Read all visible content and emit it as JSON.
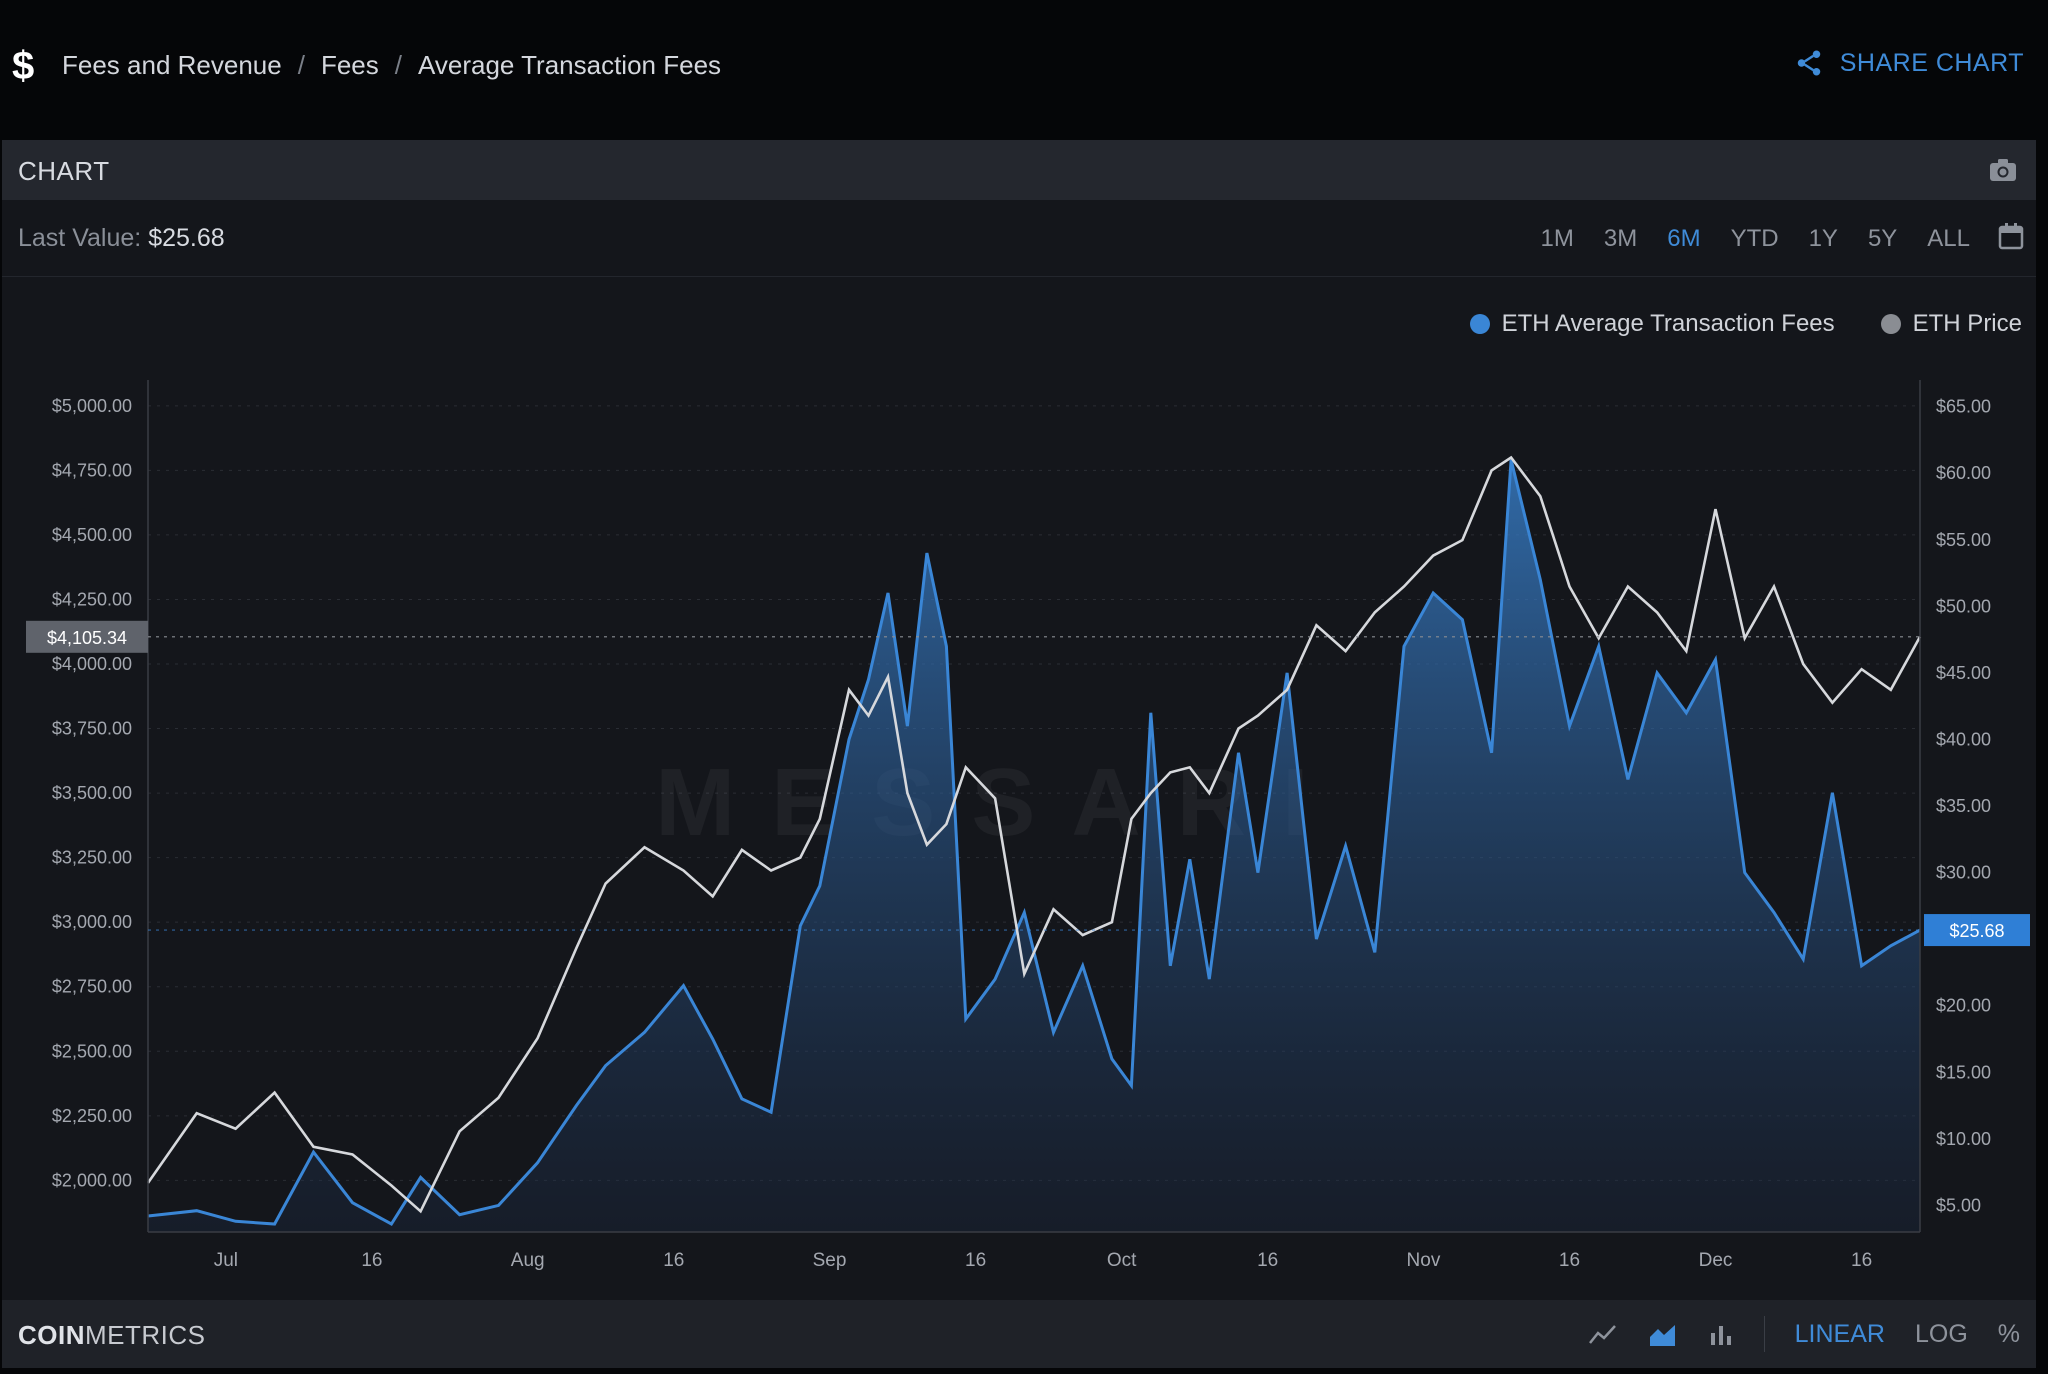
{
  "header": {
    "currency_icon": "dollar-icon",
    "breadcrumbs": [
      "Fees and Revenue",
      "Fees",
      "Average Transaction Fees"
    ],
    "breadcrumb_separator": "/",
    "share_label": "SHARE CHART"
  },
  "panel": {
    "title": "CHART",
    "last_value_label": "Last Value:",
    "last_value": "$25.68",
    "ranges": [
      "1M",
      "3M",
      "6M",
      "YTD",
      "1Y",
      "5Y",
      "ALL"
    ],
    "active_range": "6M"
  },
  "footer": {
    "brand_bold": "COIN",
    "brand_rest": "METRICS",
    "scales": [
      "LINEAR",
      "LOG",
      "%"
    ],
    "active_scale": "LINEAR"
  },
  "colors": {
    "fees_line": "#3a86d6",
    "price_line": "#d6d8dc",
    "accent": "#3f8bd8"
  },
  "chart_data": {
    "type": "line",
    "watermark": "MESSARI",
    "x_range": [
      "2021-06-23",
      "2021-12-22"
    ],
    "x_tick_labels": [
      {
        "date": "2021-07-01",
        "label": "Jul"
      },
      {
        "date": "2021-07-16",
        "label": "16"
      },
      {
        "date": "2021-08-01",
        "label": "Aug"
      },
      {
        "date": "2021-08-16",
        "label": "16"
      },
      {
        "date": "2021-09-01",
        "label": "Sep"
      },
      {
        "date": "2021-09-16",
        "label": "16"
      },
      {
        "date": "2021-10-01",
        "label": "Oct"
      },
      {
        "date": "2021-10-16",
        "label": "16"
      },
      {
        "date": "2021-11-01",
        "label": "Nov"
      },
      {
        "date": "2021-11-16",
        "label": "16"
      },
      {
        "date": "2021-12-01",
        "label": "Dec"
      },
      {
        "date": "2021-12-16",
        "label": "16"
      }
    ],
    "y_left": {
      "range": [
        1800,
        5100
      ],
      "ticks": [
        2000,
        2250,
        2500,
        2750,
        3000,
        3250,
        3500,
        3750,
        4000,
        4250,
        4500,
        4750,
        5000
      ],
      "tick_labels": [
        "$2,000.00",
        "$2,250.00",
        "$2,500.00",
        "$2,750.00",
        "$3,000.00",
        "$3,250.00",
        "$3,500.00",
        "$3,750.00",
        "$4,000.00",
        "$4,250.00",
        "$4,500.00",
        "$4,750.00",
        "$5,000.00"
      ],
      "crosshair_value": 4105.34,
      "crosshair_label": "$4,105.34"
    },
    "y_right": {
      "range": [
        3,
        67
      ],
      "ticks": [
        5,
        10,
        15,
        20,
        25,
        30,
        35,
        40,
        45,
        50,
        55,
        60,
        65
      ],
      "tick_labels": [
        "$5.00",
        "$10.00",
        "$15.00",
        "$20.00",
        "$25.00",
        "$30.00",
        "$35.00",
        "$40.00",
        "$45.00",
        "$50.00",
        "$55.00",
        "$60.00",
        "$65.00"
      ],
      "last_value": 25.68,
      "last_label": "$25.68"
    },
    "legend_placement": "top-right",
    "series": [
      {
        "name": "ETH Average Transaction Fees",
        "axis": "right",
        "style": "area",
        "points": [
          [
            "2021-06-23",
            4.2
          ],
          [
            "2021-06-28",
            4.6
          ],
          [
            "2021-07-02",
            3.8
          ],
          [
            "2021-07-06",
            3.6
          ],
          [
            "2021-07-10",
            9.0
          ],
          [
            "2021-07-14",
            5.2
          ],
          [
            "2021-07-18",
            3.6
          ],
          [
            "2021-07-21",
            7.1
          ],
          [
            "2021-07-25",
            4.3
          ],
          [
            "2021-07-29",
            5.0
          ],
          [
            "2021-08-02",
            8.2
          ],
          [
            "2021-08-06",
            12.5
          ],
          [
            "2021-08-09",
            15.5
          ],
          [
            "2021-08-13",
            18.0
          ],
          [
            "2021-08-17",
            21.5
          ],
          [
            "2021-08-20",
            17.5
          ],
          [
            "2021-08-23",
            13.0
          ],
          [
            "2021-08-26",
            12.0
          ],
          [
            "2021-08-29",
            26.0
          ],
          [
            "2021-08-31",
            29.0
          ],
          [
            "2021-09-03",
            40.0
          ],
          [
            "2021-09-05",
            44.5
          ],
          [
            "2021-09-07",
            51.0
          ],
          [
            "2021-09-09",
            41.0
          ],
          [
            "2021-09-11",
            54.0
          ],
          [
            "2021-09-13",
            47.0
          ],
          [
            "2021-09-15",
            19.0
          ],
          [
            "2021-09-18",
            22.0
          ],
          [
            "2021-09-21",
            27.0
          ],
          [
            "2021-09-24",
            18.0
          ],
          [
            "2021-09-27",
            23.0
          ],
          [
            "2021-09-30",
            16.0
          ],
          [
            "2021-10-02",
            14.0
          ],
          [
            "2021-10-04",
            42.0
          ],
          [
            "2021-10-06",
            23.0
          ],
          [
            "2021-10-08",
            31.0
          ],
          [
            "2021-10-10",
            22.0
          ],
          [
            "2021-10-13",
            39.0
          ],
          [
            "2021-10-15",
            30.0
          ],
          [
            "2021-10-18",
            45.0
          ],
          [
            "2021-10-21",
            25.0
          ],
          [
            "2021-10-24",
            32.0
          ],
          [
            "2021-10-27",
            24.0
          ],
          [
            "2021-10-30",
            47.0
          ],
          [
            "2021-11-02",
            51.0
          ],
          [
            "2021-11-05",
            49.0
          ],
          [
            "2021-11-08",
            39.0
          ],
          [
            "2021-11-10",
            61.0
          ],
          [
            "2021-11-13",
            52.0
          ],
          [
            "2021-11-16",
            41.0
          ],
          [
            "2021-11-19",
            47.0
          ],
          [
            "2021-11-22",
            37.0
          ],
          [
            "2021-11-25",
            45.0
          ],
          [
            "2021-11-28",
            42.0
          ],
          [
            "2021-12-01",
            46.0
          ],
          [
            "2021-12-04",
            30.0
          ],
          [
            "2021-12-07",
            27.0
          ],
          [
            "2021-12-10",
            23.5
          ],
          [
            "2021-12-13",
            36.0
          ],
          [
            "2021-12-16",
            23.0
          ],
          [
            "2021-12-19",
            24.5
          ],
          [
            "2021-12-22",
            25.68
          ]
        ]
      },
      {
        "name": "ETH Price",
        "axis": "left",
        "style": "line",
        "points": [
          [
            "2021-06-23",
            1990
          ],
          [
            "2021-06-28",
            2260
          ],
          [
            "2021-07-02",
            2200
          ],
          [
            "2021-07-06",
            2340
          ],
          [
            "2021-07-10",
            2130
          ],
          [
            "2021-07-14",
            2100
          ],
          [
            "2021-07-18",
            1980
          ],
          [
            "2021-07-21",
            1880
          ],
          [
            "2021-07-25",
            2190
          ],
          [
            "2021-07-29",
            2320
          ],
          [
            "2021-08-02",
            2550
          ],
          [
            "2021-08-06",
            2900
          ],
          [
            "2021-08-09",
            3150
          ],
          [
            "2021-08-13",
            3290
          ],
          [
            "2021-08-17",
            3200
          ],
          [
            "2021-08-20",
            3100
          ],
          [
            "2021-08-23",
            3280
          ],
          [
            "2021-08-26",
            3200
          ],
          [
            "2021-08-29",
            3250
          ],
          [
            "2021-08-31",
            3400
          ],
          [
            "2021-09-03",
            3900
          ],
          [
            "2021-09-05",
            3800
          ],
          [
            "2021-09-07",
            3950
          ],
          [
            "2021-09-09",
            3500
          ],
          [
            "2021-09-11",
            3300
          ],
          [
            "2021-09-13",
            3380
          ],
          [
            "2021-09-15",
            3600
          ],
          [
            "2021-09-18",
            3480
          ],
          [
            "2021-09-21",
            2800
          ],
          [
            "2021-09-24",
            3050
          ],
          [
            "2021-09-27",
            2950
          ],
          [
            "2021-09-30",
            3000
          ],
          [
            "2021-10-02",
            3400
          ],
          [
            "2021-10-04",
            3500
          ],
          [
            "2021-10-06",
            3580
          ],
          [
            "2021-10-08",
            3600
          ],
          [
            "2021-10-10",
            3500
          ],
          [
            "2021-10-13",
            3750
          ],
          [
            "2021-10-15",
            3800
          ],
          [
            "2021-10-18",
            3900
          ],
          [
            "2021-10-21",
            4150
          ],
          [
            "2021-10-24",
            4050
          ],
          [
            "2021-10-27",
            4200
          ],
          [
            "2021-10-30",
            4300
          ],
          [
            "2021-11-02",
            4420
          ],
          [
            "2021-11-05",
            4480
          ],
          [
            "2021-11-08",
            4750
          ],
          [
            "2021-11-10",
            4800
          ],
          [
            "2021-11-13",
            4650
          ],
          [
            "2021-11-16",
            4300
          ],
          [
            "2021-11-19",
            4100
          ],
          [
            "2021-11-22",
            4300
          ],
          [
            "2021-11-25",
            4200
          ],
          [
            "2021-11-28",
            4050
          ],
          [
            "2021-12-01",
            4600
          ],
          [
            "2021-12-04",
            4100
          ],
          [
            "2021-12-07",
            4300
          ],
          [
            "2021-12-10",
            4000
          ],
          [
            "2021-12-13",
            3850
          ],
          [
            "2021-12-16",
            3980
          ],
          [
            "2021-12-19",
            3900
          ],
          [
            "2021-12-22",
            4105.34
          ]
        ]
      }
    ]
  }
}
